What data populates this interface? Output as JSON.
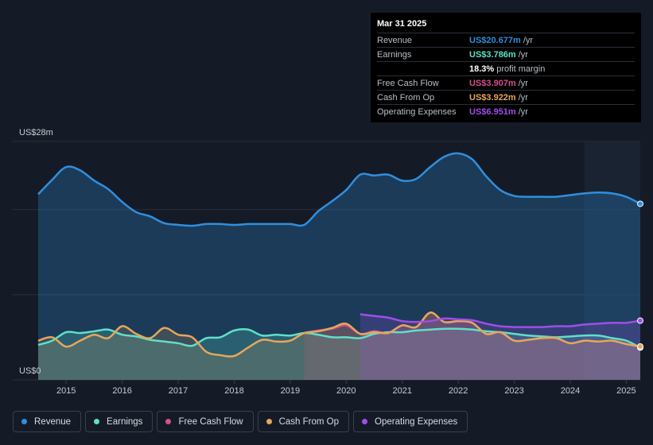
{
  "tooltip": {
    "date": "Mar 31 2025",
    "rows": [
      {
        "label": "Revenue",
        "value": "US$20.677m",
        "unit": "/yr",
        "color": "#2f8fe0"
      },
      {
        "label": "Earnings",
        "value": "US$3.786m",
        "unit": "/yr",
        "color": "#5ee0c8"
      },
      {
        "label": "",
        "value": "18.3%",
        "unit": "profit margin",
        "color": "#ffffff"
      },
      {
        "label": "Free Cash Flow",
        "value": "US$3.907m",
        "unit": "/yr",
        "color": "#d6508a"
      },
      {
        "label": "Cash From Op",
        "value": "US$3.922m",
        "unit": "/yr",
        "color": "#e6a75a"
      },
      {
        "label": "Operating Expenses",
        "value": "US$6.951m",
        "unit": "/yr",
        "color": "#a04ee8"
      }
    ]
  },
  "legend": [
    {
      "label": "Revenue",
      "color": "#2f8fe0",
      "icon": "revenue-dot-icon"
    },
    {
      "label": "Earnings",
      "color": "#5ee0c8",
      "icon": "earnings-dot-icon"
    },
    {
      "label": "Free Cash Flow",
      "color": "#d6508a",
      "icon": "free-cash-flow-dot-icon"
    },
    {
      "label": "Cash From Op",
      "color": "#e6a75a",
      "icon": "cash-from-op-dot-icon"
    },
    {
      "label": "Operating Expenses",
      "color": "#a04ee8",
      "icon": "operating-expenses-dot-icon"
    }
  ],
  "chart_data": {
    "type": "area",
    "title": "",
    "xlabel": "",
    "ylabel": "",
    "y_top_label": "US$28m",
    "y_bottom_label": "US$0",
    "ylim": [
      0,
      28
    ],
    "xlim": [
      2014.5,
      2025.25
    ],
    "x_ticks": [
      "2015",
      "2016",
      "2017",
      "2018",
      "2019",
      "2020",
      "2021",
      "2022",
      "2023",
      "2024",
      "2025"
    ],
    "grid": true,
    "highlight_start": 2024.25,
    "series": [
      {
        "name": "Revenue",
        "color": "#2f8fe0",
        "x": [
          2014.5,
          2014.75,
          2015.0,
          2015.25,
          2015.5,
          2015.75,
          2016.0,
          2016.25,
          2016.5,
          2016.75,
          2017.0,
          2017.25,
          2017.5,
          2017.75,
          2018.0,
          2018.25,
          2018.5,
          2018.75,
          2019.0,
          2019.25,
          2019.5,
          2019.75,
          2020.0,
          2020.25,
          2020.5,
          2020.75,
          2021.0,
          2021.25,
          2021.5,
          2021.75,
          2022.0,
          2022.25,
          2022.5,
          2022.75,
          2023.0,
          2023.25,
          2023.5,
          2023.75,
          2024.0,
          2024.25,
          2024.5,
          2024.75,
          2025.0,
          2025.25
        ],
        "values": [
          21.8,
          23.5,
          25.0,
          24.6,
          23.4,
          22.4,
          20.9,
          19.7,
          19.2,
          18.4,
          18.2,
          18.1,
          18.3,
          18.3,
          18.2,
          18.3,
          18.3,
          18.3,
          18.3,
          18.2,
          19.8,
          21.0,
          22.3,
          24.1,
          24.0,
          24.1,
          23.4,
          23.6,
          25.0,
          26.2,
          26.6,
          25.9,
          23.9,
          22.3,
          21.6,
          21.5,
          21.5,
          21.5,
          21.7,
          21.9,
          22.0,
          21.9,
          21.5,
          20.677
        ]
      },
      {
        "name": "Earnings",
        "color": "#5ee0c8",
        "x": [
          2014.5,
          2014.75,
          2015.0,
          2015.25,
          2015.5,
          2015.75,
          2016.0,
          2016.25,
          2016.5,
          2016.75,
          2017.0,
          2017.25,
          2017.5,
          2017.75,
          2018.0,
          2018.25,
          2018.5,
          2018.75,
          2019.0,
          2019.25,
          2019.5,
          2019.75,
          2020.0,
          2020.25,
          2020.5,
          2020.75,
          2021.0,
          2021.25,
          2021.5,
          2021.75,
          2022.0,
          2022.25,
          2022.5,
          2022.75,
          2023.0,
          2023.25,
          2023.5,
          2023.75,
          2024.0,
          2024.25,
          2024.5,
          2024.75,
          2025.0,
          2025.25
        ],
        "values": [
          4.1,
          4.6,
          5.6,
          5.5,
          5.7,
          5.9,
          5.3,
          5.1,
          4.7,
          4.5,
          4.3,
          4.0,
          4.9,
          5.0,
          5.8,
          5.9,
          5.2,
          5.3,
          5.2,
          5.5,
          5.3,
          5.0,
          5.0,
          4.9,
          5.4,
          5.6,
          5.6,
          5.8,
          5.9,
          6.0,
          6.0,
          5.9,
          5.7,
          5.6,
          5.4,
          5.2,
          5.1,
          5.0,
          5.1,
          5.2,
          5.2,
          4.9,
          4.6,
          3.786
        ]
      },
      {
        "name": "Free Cash Flow",
        "color": "#d6508a",
        "x": [
          2019.25,
          2019.5,
          2019.75,
          2020.0,
          2020.25,
          2020.5,
          2020.75,
          2021.0,
          2021.25,
          2021.5,
          2021.75,
          2022.0,
          2022.25,
          2022.5,
          2022.75,
          2023.0,
          2023.25,
          2023.5,
          2023.75,
          2024.0,
          2024.25,
          2024.5,
          2024.75,
          2025.0,
          2025.25
        ],
        "values": [
          5.5,
          5.8,
          6.0,
          6.4,
          5.4,
          5.7,
          5.5,
          6.4,
          6.2,
          7.9,
          6.8,
          6.9,
          6.7,
          5.4,
          5.6,
          4.6,
          4.7,
          4.9,
          4.9,
          4.3,
          4.6,
          4.5,
          4.6,
          4.2,
          3.907
        ]
      },
      {
        "name": "Cash From Op",
        "color": "#e6a75a",
        "x": [
          2014.5,
          2014.75,
          2015.0,
          2015.25,
          2015.5,
          2015.75,
          2016.0,
          2016.25,
          2016.5,
          2016.75,
          2017.0,
          2017.25,
          2017.5,
          2017.75,
          2018.0,
          2018.25,
          2018.5,
          2018.75,
          2019.0,
          2019.25,
          2019.5,
          2019.75,
          2020.0,
          2020.25,
          2020.5,
          2020.75,
          2021.0,
          2021.25,
          2021.5,
          2021.75,
          2022.0,
          2022.25,
          2022.5,
          2022.75,
          2023.0,
          2023.25,
          2023.5,
          2023.75,
          2024.0,
          2024.25,
          2024.5,
          2024.75,
          2025.0,
          2025.25
        ],
        "values": [
          4.6,
          5.0,
          3.9,
          4.6,
          5.3,
          4.9,
          6.3,
          5.4,
          4.9,
          6.1,
          5.3,
          5.0,
          3.3,
          2.9,
          2.8,
          3.8,
          4.7,
          4.5,
          4.6,
          5.5,
          5.7,
          6.1,
          6.6,
          5.4,
          5.6,
          5.5,
          6.4,
          6.2,
          7.9,
          6.8,
          6.9,
          6.7,
          5.4,
          5.6,
          4.6,
          4.7,
          4.9,
          4.9,
          4.3,
          4.6,
          4.5,
          4.6,
          4.2,
          3.922
        ]
      },
      {
        "name": "Operating Expenses",
        "color": "#a04ee8",
        "x": [
          2020.25,
          2020.5,
          2020.75,
          2021.0,
          2021.25,
          2021.5,
          2021.75,
          2022.0,
          2022.25,
          2022.5,
          2022.75,
          2023.0,
          2023.25,
          2023.5,
          2023.75,
          2024.0,
          2024.25,
          2024.5,
          2024.75,
          2025.0,
          2025.25
        ],
        "values": [
          7.7,
          7.5,
          7.3,
          6.9,
          6.8,
          6.9,
          7.2,
          7.1,
          7.0,
          6.6,
          6.3,
          6.2,
          6.2,
          6.2,
          6.3,
          6.3,
          6.5,
          6.6,
          6.7,
          6.7,
          6.951
        ]
      }
    ]
  }
}
